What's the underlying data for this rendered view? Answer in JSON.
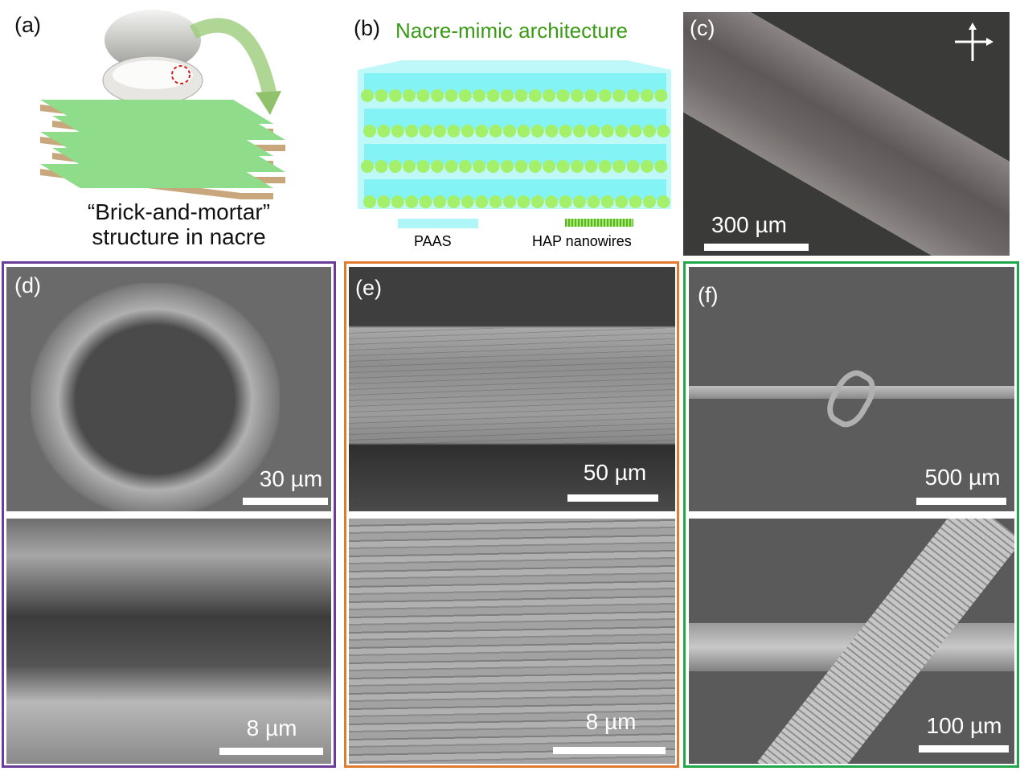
{
  "panels": {
    "a": {
      "label": "(a)",
      "caption_line1": "“Brick-and-mortar”",
      "caption_line2": "structure in nacre"
    },
    "b": {
      "label": "(b)",
      "title": "Nacre-mimic architecture",
      "legend": [
        "PAAS",
        "HAP nanowires"
      ],
      "title_color": "#3a9a16"
    },
    "c": {
      "label": "(c)",
      "scale": "300 µm",
      "icon": "polarizer-cross-icon"
    },
    "d": {
      "label": "(d)",
      "scale_top": "30 µm",
      "scale_bottom": "8 µm",
      "border_color": "#6a3d9a"
    },
    "e": {
      "label": "(e)",
      "scale_top": "50 µm",
      "scale_bottom": "8 µm",
      "border_color": "#e07a2f"
    },
    "f": {
      "label": "(f)",
      "scale_top": "500 µm",
      "scale_bottom": "100 µm",
      "border_color": "#22a64a"
    }
  }
}
